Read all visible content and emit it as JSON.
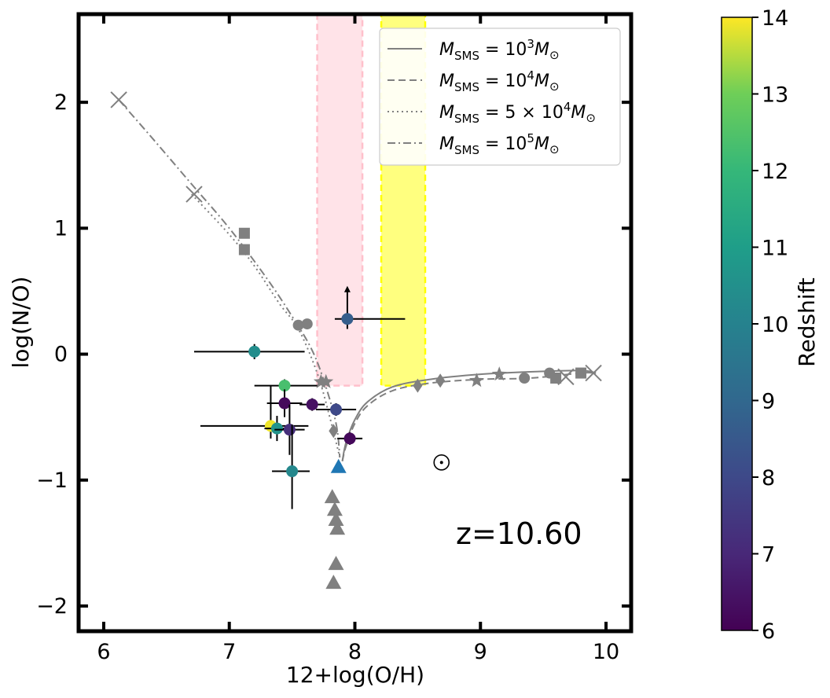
{
  "chart_data": {
    "type": "scatter",
    "xlabel": "12+log(O/H)",
    "ylabel": "log(N/O)",
    "xlim": [
      5.8,
      10.2
    ],
    "ylim": [
      -2.2,
      2.7
    ],
    "xticks": [
      6,
      7,
      8,
      9,
      10
    ],
    "yticks": [
      -2,
      -1,
      0,
      1,
      2
    ],
    "xtick_labels": [
      "6",
      "7",
      "8",
      "9",
      "10"
    ],
    "ytick_labels": [
      "−2",
      "−1",
      "0",
      "1",
      "2"
    ],
    "annotation": "z=10.60",
    "bands": [
      {
        "color": "#ffc0cb",
        "x": [
          7.7,
          8.06
        ],
        "y": [
          -0.25,
          2.7
        ]
      },
      {
        "color": "#ffff00",
        "x": [
          8.21,
          8.56
        ],
        "y": [
          -0.25,
          2.7
        ]
      }
    ],
    "legend": {
      "placement": "upper-right",
      "entries": [
        {
          "style": "solid",
          "prefix": "M",
          "sub": "SMS",
          "eq": " = 10",
          "sup": "3",
          "suffix": "M",
          "sun": "⊙"
        },
        {
          "style": "dashed",
          "prefix": "M",
          "sub": "SMS",
          "eq": " = 10",
          "sup": "4",
          "suffix": "M",
          "sun": "⊙"
        },
        {
          "style": "dotted",
          "prefix": "M",
          "sub": "SMS",
          "eq": " = 5 × 10",
          "sup": "4",
          "suffix": "M",
          "sun": "⊙"
        },
        {
          "style": "dashdot",
          "prefix": "M",
          "sub": "SMS",
          "eq": " = 10",
          "sup": "5",
          "suffix": "M",
          "sun": "⊙"
        }
      ]
    },
    "model_tracks": [
      {
        "style": "solid",
        "x": [
          7.9,
          7.93,
          8.0,
          8.1,
          8.3,
          8.6,
          9.0,
          9.4,
          9.8,
          9.92
        ],
        "y": [
          -0.85,
          -0.7,
          -0.52,
          -0.38,
          -0.26,
          -0.2,
          -0.16,
          -0.14,
          -0.13,
          -0.15
        ]
      },
      {
        "style": "dashed",
        "x": [
          7.9,
          7.93,
          8.0,
          8.1,
          8.3,
          8.6,
          9.0,
          9.4,
          9.8,
          9.92
        ],
        "y": [
          -0.85,
          -0.73,
          -0.55,
          -0.41,
          -0.29,
          -0.23,
          -0.2,
          -0.19,
          -0.15,
          -0.15
        ]
      },
      {
        "style": "dotted",
        "x": [
          6.7,
          7.0,
          7.2,
          7.4,
          7.55,
          7.7,
          7.8,
          7.88
        ],
        "y": [
          1.27,
          0.95,
          0.7,
          0.4,
          0.2,
          -0.15,
          -0.5,
          -0.82
        ]
      },
      {
        "style": "dashdot",
        "x": [
          6.12,
          6.4,
          6.7,
          7.0,
          7.3,
          7.5,
          7.65,
          7.75,
          7.85,
          7.88
        ],
        "y": [
          2.02,
          1.7,
          1.35,
          1.0,
          0.6,
          0.3,
          0.05,
          -0.2,
          -0.55,
          -0.82
        ]
      }
    ],
    "model_markers": [
      {
        "marker": "x",
        "x": [
          6.12,
          6.72,
          9.68,
          9.9
        ],
        "y": [
          2.02,
          1.27,
          -0.18,
          -0.15
        ]
      },
      {
        "marker": "square",
        "x": [
          7.12,
          7.12,
          9.6,
          9.8
        ],
        "y": [
          0.96,
          0.83,
          -0.19,
          -0.15
        ]
      },
      {
        "marker": "circle",
        "x": [
          7.55,
          7.62,
          9.35,
          9.55
        ],
        "y": [
          0.23,
          0.24,
          -0.19,
          -0.15
        ]
      },
      {
        "marker": "star",
        "x": [
          7.73,
          7.77,
          8.97,
          9.15
        ],
        "y": [
          -0.22,
          -0.22,
          -0.21,
          -0.16
        ]
      },
      {
        "marker": "diamond",
        "x": [
          7.83,
          8.5,
          8.68
        ],
        "y": [
          -0.61,
          -0.25,
          -0.21
        ]
      },
      {
        "marker": "triangle",
        "x": [
          7.82,
          7.84,
          7.85,
          7.86,
          7.85,
          7.83
        ],
        "y": [
          -1.14,
          -1.24,
          -1.32,
          -1.39,
          -1.67,
          -1.82
        ]
      }
    ],
    "highlight_point": {
      "marker": "triangle",
      "color": "#1f77b4",
      "x": 7.87,
      "y": -0.9
    },
    "observations": [
      {
        "x": 7.2,
        "y": 0.02,
        "xerr": [
          0.48,
          0.4
        ],
        "yerr": [
          0.06,
          0.06
        ],
        "z": 10.4
      },
      {
        "x": 7.94,
        "y": 0.28,
        "xerr": [
          0.1,
          0.46
        ],
        "yerr": [
          0.08,
          0.0
        ],
        "z": 8.68,
        "lower_limit": true
      },
      {
        "x": 7.44,
        "y": -0.25,
        "xerr": [
          0.24,
          0.26
        ],
        "yerr": [
          0.05,
          0.05
        ],
        "z": 12.34
      },
      {
        "x": 7.44,
        "y": -0.39,
        "xerr": [
          0.14,
          0.14
        ],
        "yerr": [
          0.11,
          0.11
        ],
        "z": 6.2
      },
      {
        "x": 7.66,
        "y": -0.4,
        "xerr": [
          0.1,
          0.1
        ],
        "yerr": [
          0.05,
          0.05
        ],
        "z": 6.4
      },
      {
        "x": 7.85,
        "y": -0.44,
        "xerr": [
          0.16,
          0.16
        ],
        "yerr": [
          0.05,
          0.05
        ],
        "z": 8.0
      },
      {
        "x": 7.33,
        "y": -0.57,
        "xerr": [
          0.56,
          0.3
        ],
        "yerr": [
          0.1,
          0.32
        ],
        "z": 13.9
      },
      {
        "x": 7.38,
        "y": -0.59,
        "xerr": [
          0.1,
          0.1
        ],
        "yerr": [
          0.1,
          0.1
        ],
        "z": 10.6
      },
      {
        "x": 7.48,
        "y": -0.6,
        "xerr": [
          0.12,
          0.12
        ],
        "yerr": [
          0.2,
          0.2
        ],
        "z": 7.2
      },
      {
        "x": 7.96,
        "y": -0.67,
        "xerr": [
          0.1,
          0.1
        ],
        "yerr": [
          0.05,
          0.05
        ],
        "z": 6.2
      },
      {
        "x": 7.5,
        "y": -0.93,
        "xerr": [
          0.16,
          0.14
        ],
        "yerr": [
          0.3,
          0.37
        ],
        "z": 10.2
      }
    ],
    "solar": {
      "x": 8.69,
      "y": -0.86,
      "symbol": "⊙"
    },
    "colorbar": {
      "label": "Redshift",
      "min": 6,
      "max": 14,
      "ticks": [
        6,
        7,
        8,
        9,
        10,
        11,
        12,
        13,
        14
      ],
      "tick_labels": [
        "6",
        "7",
        "8",
        "9",
        "10",
        "11",
        "12",
        "13",
        "14"
      ],
      "colormap": "viridis"
    }
  }
}
